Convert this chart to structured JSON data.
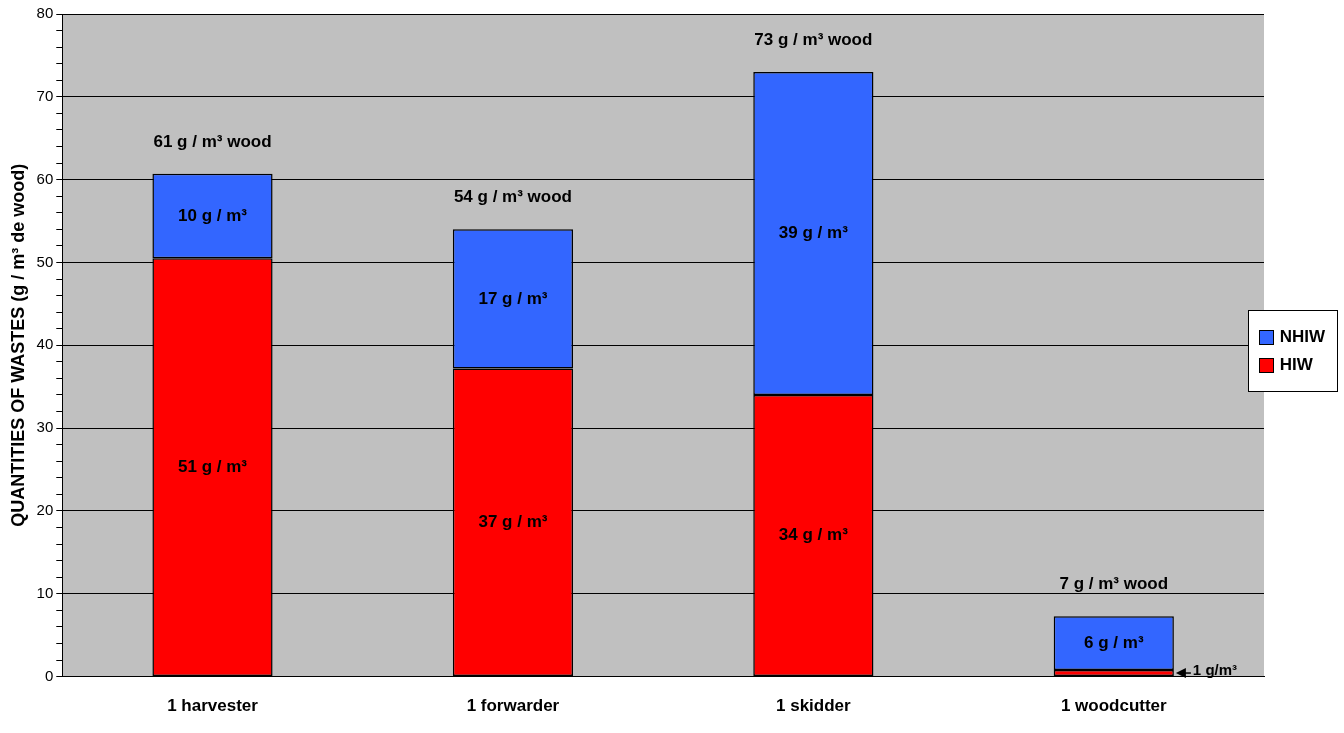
{
  "chart_data": {
    "type": "bar",
    "stacked": true,
    "ylabel": "QUANTITIES OF WASTES (g / m³ de wood)",
    "categories": [
      "1 harvester",
      "1 forwarder",
      "1 skidder",
      "1 woodcutter"
    ],
    "series": [
      {
        "name": "HIW",
        "color": "#ff0000",
        "values": [
          50.5,
          37.2,
          34,
          0.8
        ],
        "value_labels": [
          "51 g / m³",
          "37 g / m³",
          "34 g / m³",
          "1 g/m³"
        ]
      },
      {
        "name": "NHIW",
        "color": "#3366ff",
        "values": [
          10.2,
          16.8,
          39,
          6.5
        ],
        "value_labels": [
          "10 g / m³",
          "17 g / m³",
          "39 g / m³",
          "6 g / m³"
        ]
      }
    ],
    "totals": [
      "61 g / m³ wood",
      "54 g / m³ wood",
      "73 g / m³ wood",
      "7 g / m³ wood"
    ],
    "ylim": [
      0,
      80
    ],
    "yticks": [
      0,
      {
        "value": 2,
        "label": null
      },
      {
        "value": 4,
        "label": null
      },
      {
        "value": 6,
        "label": null
      },
      {
        "value": 8,
        "label": null
      },
      10,
      {
        "value": 12,
        "label": null
      },
      {
        "value": 14,
        "label": null
      },
      {
        "value": 16,
        "label": null
      },
      {
        "value": 18,
        "label": null
      },
      20,
      {
        "value": 22,
        "label": null
      },
      {
        "value": 24,
        "label": null
      },
      {
        "value": 26,
        "label": null
      },
      {
        "value": 28,
        "label": null
      },
      30,
      {
        "value": 32,
        "label": null
      },
      {
        "value": 34,
        "label": null
      },
      {
        "value": 36,
        "label": null
      },
      {
        "value": 38,
        "label": null
      },
      40,
      {
        "value": 42,
        "label": null
      },
      {
        "value": 44,
        "label": null
      },
      {
        "value": 46,
        "label": null
      },
      {
        "value": 48,
        "label": null
      },
      50,
      {
        "value": 52,
        "label": null
      },
      {
        "value": 54,
        "label": null
      },
      {
        "value": 56,
        "label": null
      },
      {
        "value": 58,
        "label": null
      },
      60,
      {
        "value": 62,
        "label": null
      },
      {
        "value": 64,
        "label": null
      },
      {
        "value": 66,
        "label": null
      },
      {
        "value": 68,
        "label": null
      },
      70,
      {
        "value": 72,
        "label": null
      },
      {
        "value": 74,
        "label": null
      },
      {
        "value": 76,
        "label": null
      },
      {
        "value": 78,
        "label": null
      },
      80
    ],
    "grid": "y",
    "legend": "right"
  }
}
